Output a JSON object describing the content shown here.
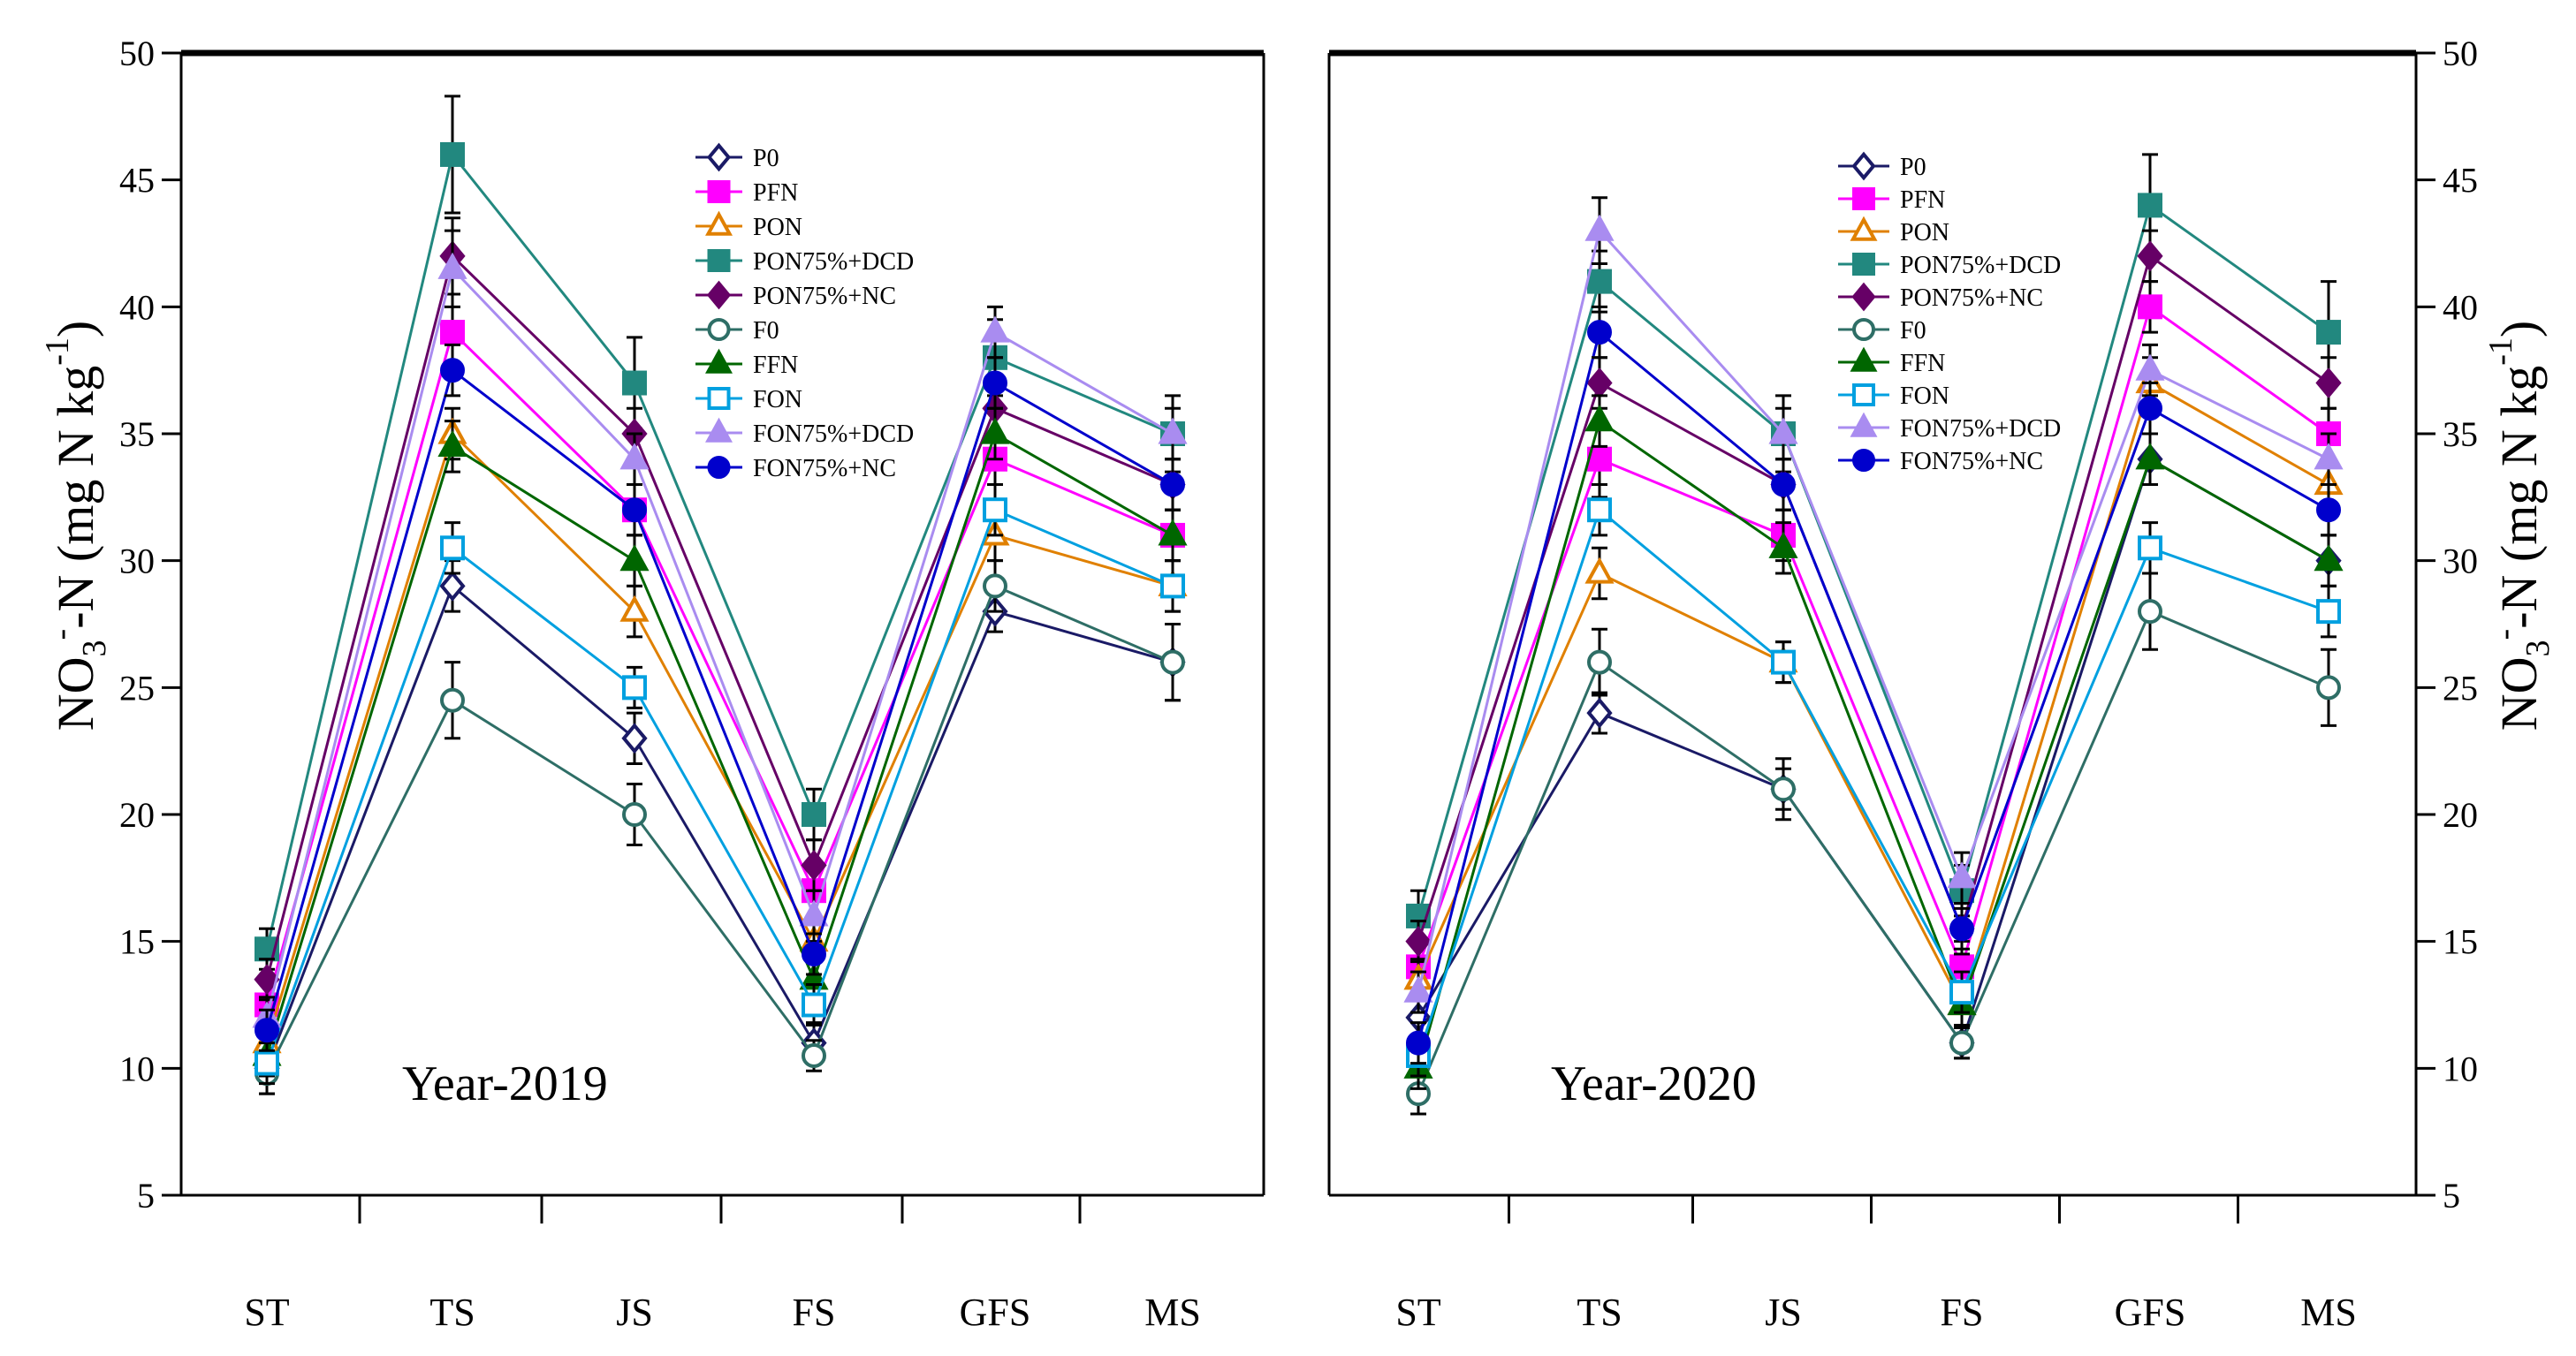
{
  "axis_label": {
    "left": [
      "NO",
      "3",
      "-",
      "-N (mg N kg",
      "-1",
      ")"
    ],
    "right": [
      "NO",
      "3",
      "-",
      "-N (mg N kg",
      "-1",
      ")"
    ]
  },
  "chart_data": [
    {
      "type": "line",
      "panel": "left",
      "title": "",
      "annotation": "Year-2019",
      "xlabel": "",
      "ylabel": "NO3- -N (mg N kg-1)",
      "categories": [
        "ST",
        "TS",
        "JS",
        "FS",
        "GFS",
        "MS"
      ],
      "ylim": [
        5,
        50
      ],
      "yticks": [
        "5",
        "10",
        "15",
        "20",
        "25",
        "30",
        "35",
        "40",
        "45",
        "50"
      ],
      "y_axis_side": "left",
      "legend_position": "top-right",
      "series": [
        {
          "name": "P0",
          "color": "#1a1a66",
          "marker": "diamond",
          "filled": false,
          "values": [
            10,
            29,
            23,
            11,
            28,
            26
          ],
          "errors": [
            1.0,
            1.0,
            1.0,
            0.8,
            0.8,
            1.5
          ]
        },
        {
          "name": "PFN",
          "color": "#ff00ff",
          "marker": "square",
          "filled": true,
          "values": [
            12.5,
            39,
            32,
            17,
            34,
            31
          ],
          "errors": [
            1.0,
            1.5,
            1.0,
            1.0,
            1.0,
            1.0
          ]
        },
        {
          "name": "PON",
          "color": "#e08000",
          "marker": "triangle",
          "filled": false,
          "values": [
            11,
            35,
            28,
            15,
            31,
            29
          ],
          "errors": [
            1.0,
            1.0,
            1.0,
            0.8,
            1.0,
            1.0
          ]
        },
        {
          "name": "PON75%+DCD",
          "color": "#22887f",
          "marker": "square",
          "filled": true,
          "values": [
            14.7,
            46,
            37,
            20,
            38,
            35
          ],
          "errors": [
            0.8,
            2.3,
            1.8,
            1.0,
            1.5,
            1.5
          ]
        },
        {
          "name": "PON75%+NC",
          "color": "#660066",
          "marker": "diamond",
          "filled": true,
          "values": [
            13.5,
            42,
            35,
            18,
            36,
            33
          ],
          "errors": [
            0.8,
            1.5,
            1.0,
            1.0,
            1.0,
            1.0
          ]
        },
        {
          "name": "F0",
          "color": "#2e6e66",
          "marker": "circle",
          "filled": false,
          "values": [
            9.8,
            24.5,
            20,
            10.5,
            29,
            26
          ],
          "errors": [
            0.8,
            1.5,
            1.2,
            0.6,
            1.0,
            1.5
          ]
        },
        {
          "name": "FFN",
          "color": "#006600",
          "marker": "triangle",
          "filled": true,
          "values": [
            10.5,
            34.5,
            30,
            13.5,
            35,
            31
          ],
          "errors": [
            0.8,
            1.0,
            1.0,
            0.8,
            1.0,
            1.0
          ]
        },
        {
          "name": "FON",
          "color": "#00a0e0",
          "marker": "square",
          "filled": false,
          "values": [
            10.2,
            30.5,
            25,
            12.5,
            32,
            29
          ],
          "errors": [
            0.8,
            1.0,
            0.8,
            0.8,
            1.0,
            1.0
          ]
        },
        {
          "name": "FON75%+DCD",
          "color": "#a98cf0",
          "marker": "triangle",
          "filled": true,
          "values": [
            12,
            41.5,
            34,
            16,
            39,
            35
          ],
          "errors": [
            0.8,
            1.5,
            1.0,
            1.0,
            1.0,
            1.0
          ]
        },
        {
          "name": "FON75%+NC",
          "color": "#0000cc",
          "marker": "circle",
          "filled": true,
          "values": [
            11.5,
            37.5,
            32,
            14.5,
            37,
            33
          ],
          "errors": [
            0.8,
            1.0,
            1.0,
            0.8,
            1.0,
            1.0
          ]
        }
      ]
    },
    {
      "type": "line",
      "panel": "right",
      "title": "",
      "annotation": "Year-2020",
      "xlabel": "",
      "ylabel": "NO3- -N (mg N kg-1)",
      "categories": [
        "ST",
        "TS",
        "JS",
        "FS",
        "GFS",
        "MS"
      ],
      "ylim": [
        5,
        50
      ],
      "yticks": [
        "5",
        "10",
        "15",
        "20",
        "25",
        "30",
        "35",
        "40",
        "45",
        "50"
      ],
      "y_axis_side": "right",
      "legend_position": "top-center",
      "series": [
        {
          "name": "P0",
          "color": "#1a1a66",
          "marker": "diamond",
          "filled": false,
          "values": [
            12,
            24,
            21,
            11,
            34,
            30
          ],
          "errors": [
            0.8,
            0.8,
            0.8,
            0.6,
            1.0,
            1.0
          ]
        },
        {
          "name": "PFN",
          "color": "#ff00ff",
          "marker": "square",
          "filled": true,
          "values": [
            14,
            34,
            31,
            14,
            40,
            35
          ],
          "errors": [
            1.0,
            1.5,
            1.0,
            1.0,
            1.0,
            1.0
          ]
        },
        {
          "name": "PON",
          "color": "#e08000",
          "marker": "triangle",
          "filled": false,
          "values": [
            13.5,
            29.5,
            26,
            12.5,
            37,
            33
          ],
          "errors": [
            0.8,
            1.0,
            0.8,
            0.8,
            1.0,
            1.0
          ]
        },
        {
          "name": "PON75%+DCD",
          "color": "#22887f",
          "marker": "square",
          "filled": true,
          "values": [
            16,
            41,
            35,
            17,
            44,
            39
          ],
          "errors": [
            1.0,
            1.2,
            1.5,
            1.0,
            2.0,
            2.0
          ]
        },
        {
          "name": "PON75%+NC",
          "color": "#660066",
          "marker": "diamond",
          "filled": true,
          "values": [
            15,
            37,
            33,
            15.5,
            42,
            37
          ],
          "errors": [
            0.8,
            1.0,
            1.0,
            1.0,
            1.0,
            1.0
          ]
        },
        {
          "name": "F0",
          "color": "#2e6e66",
          "marker": "circle",
          "filled": false,
          "values": [
            9,
            26,
            21,
            11,
            28,
            25
          ],
          "errors": [
            0.8,
            1.3,
            1.2,
            0.6,
            1.5,
            1.5
          ]
        },
        {
          "name": "FFN",
          "color": "#006600",
          "marker": "triangle",
          "filled": true,
          "values": [
            10,
            35.5,
            30.5,
            12.5,
            34,
            30
          ],
          "errors": [
            0.8,
            1.0,
            1.0,
            0.8,
            1.0,
            1.0
          ]
        },
        {
          "name": "FON",
          "color": "#00a0e0",
          "marker": "square",
          "filled": false,
          "values": [
            10.5,
            32,
            26,
            13,
            30.5,
            28
          ],
          "errors": [
            0.8,
            1.0,
            0.8,
            0.8,
            1.0,
            1.0
          ]
        },
        {
          "name": "FON75%+DCD",
          "color": "#a98cf0",
          "marker": "triangle",
          "filled": true,
          "values": [
            13,
            43,
            35,
            17.5,
            37.5,
            34
          ],
          "errors": [
            0.8,
            1.3,
            1.0,
            1.0,
            1.0,
            1.0
          ]
        },
        {
          "name": "FON75%+NC",
          "color": "#0000cc",
          "marker": "circle",
          "filled": true,
          "values": [
            11,
            39,
            33,
            15.5,
            36,
            32
          ],
          "errors": [
            0.8,
            1.0,
            1.0,
            0.8,
            1.0,
            1.0
          ]
        }
      ]
    }
  ]
}
